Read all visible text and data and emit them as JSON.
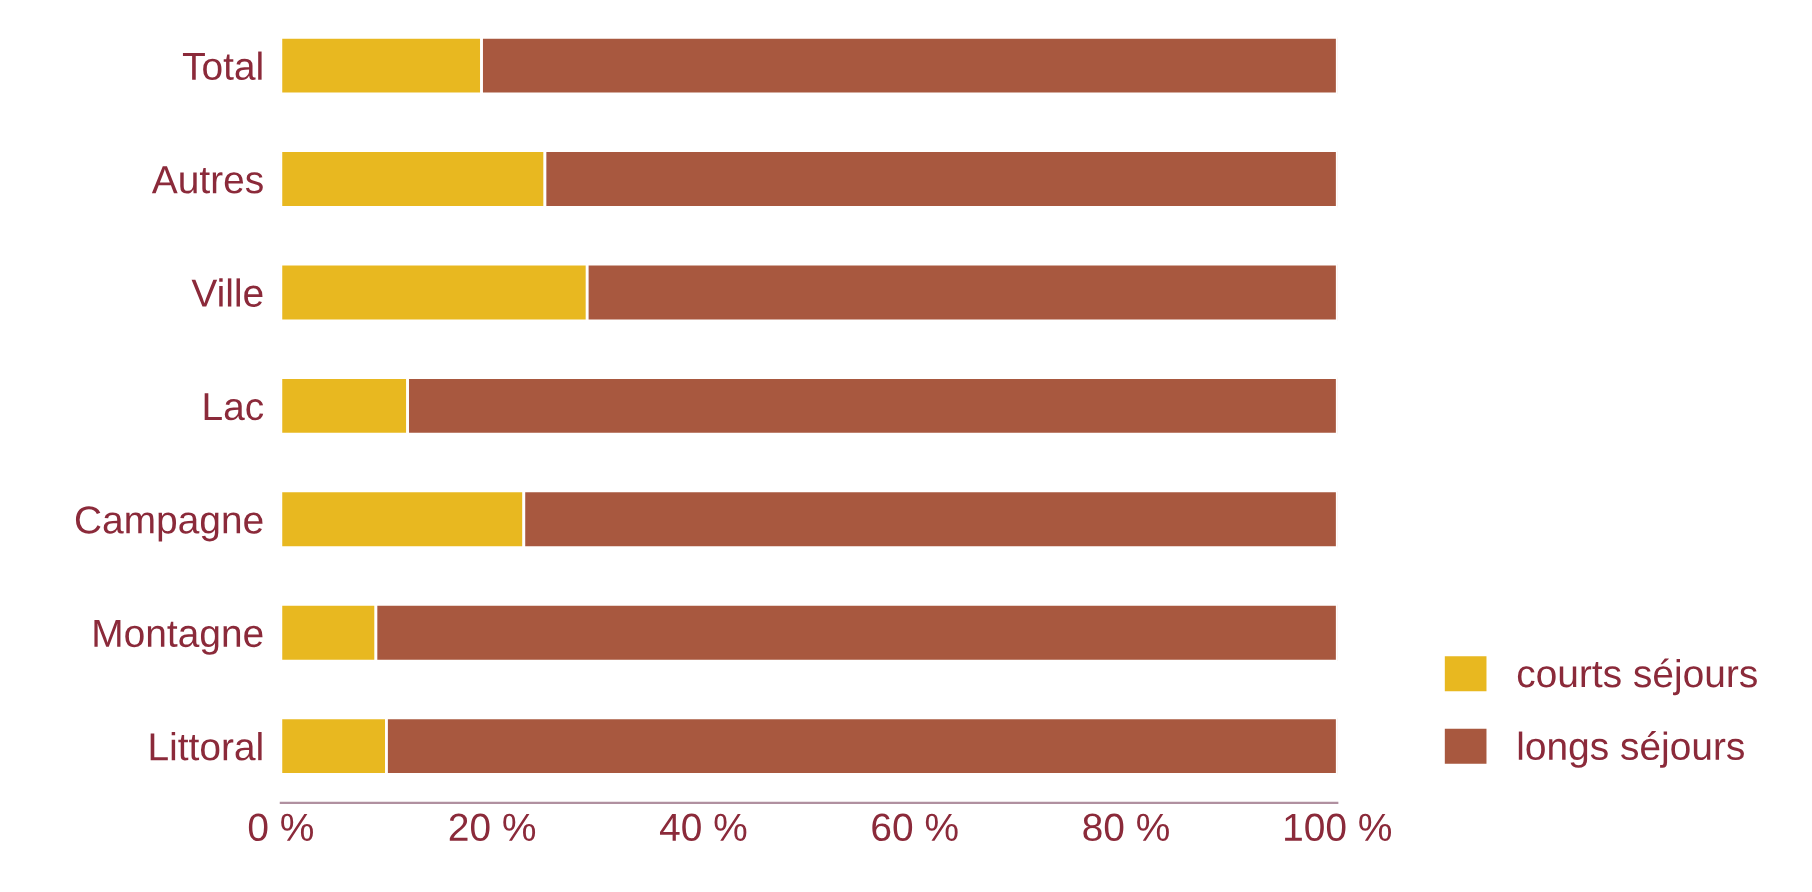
{
  "chart_data": {
    "type": "bar",
    "orientation": "horizontal",
    "stacked": true,
    "categories": [
      "Total",
      "Autres",
      "Ville",
      "Lac",
      "Campagne",
      "Montagne",
      "Littoral"
    ],
    "series": [
      {
        "name": "courts séjours",
        "color": "#e8b820",
        "values": [
          19,
          25,
          29,
          12,
          23,
          9,
          10
        ]
      },
      {
        "name": "longs séjours",
        "color": "#a8583f",
        "values": [
          81,
          75,
          71,
          88,
          77,
          91,
          90
        ]
      }
    ],
    "xlim": [
      0,
      100
    ],
    "xticks": [
      {
        "value": 0,
        "label": "0 %"
      },
      {
        "value": 20,
        "label": "20 %"
      },
      {
        "value": 40,
        "label": "40 %"
      },
      {
        "value": 60,
        "label": "60 %"
      },
      {
        "value": 80,
        "label": "80 %"
      },
      {
        "value": 100,
        "label": "100 %"
      }
    ],
    "grid": false,
    "legend": "bottom right"
  }
}
